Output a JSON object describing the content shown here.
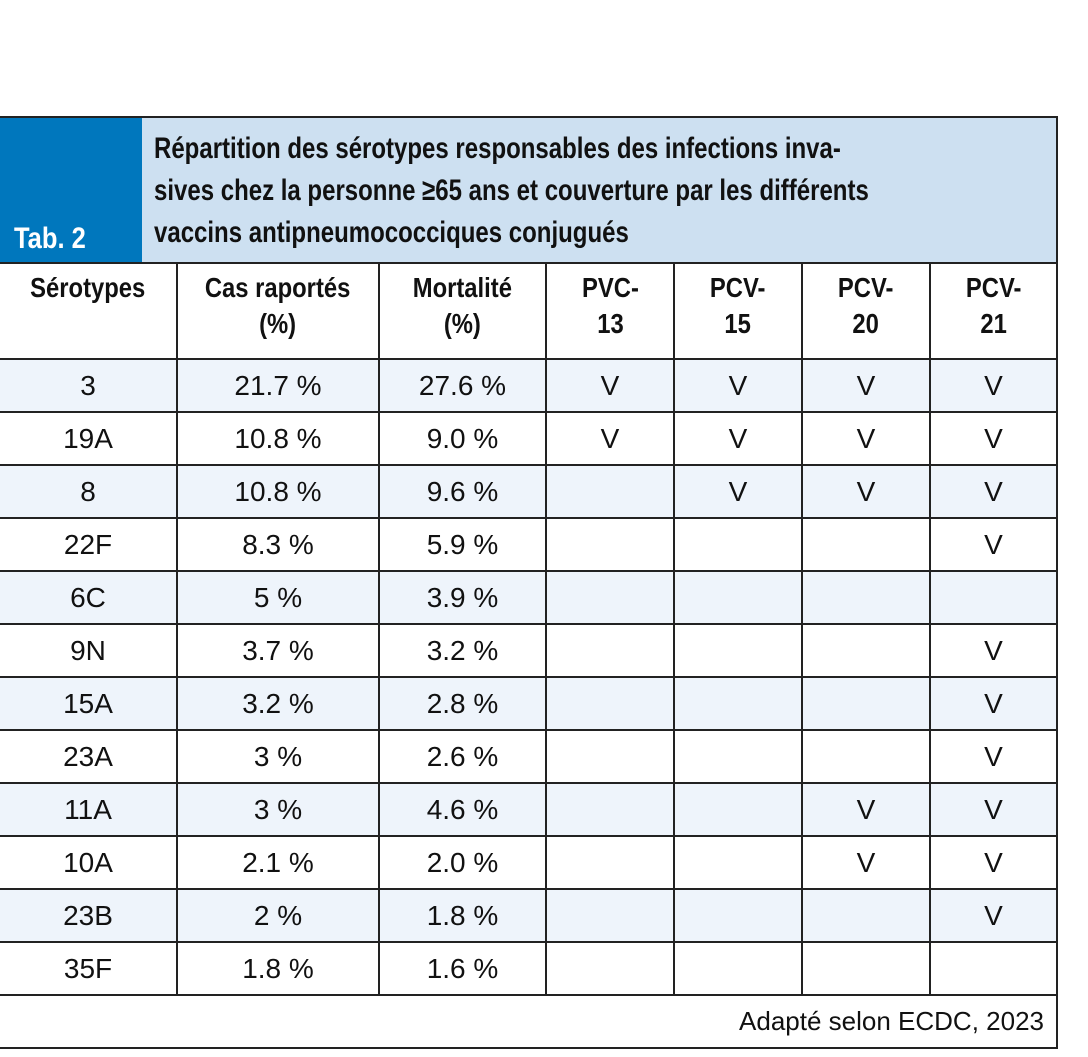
{
  "tab_label": "Tab. 2",
  "title_lines": [
    "Répartition des sérotypes responsables des infections inva-",
    "sives chez la personne ≥65 ans et couverture par les différents",
    "vaccins antipneumococciques conjugués"
  ],
  "columns": [
    [
      "Sérotypes",
      ""
    ],
    [
      "Cas raportés",
      "(%)"
    ],
    [
      "Mortalité",
      "(%)"
    ],
    [
      "PVC-",
      "13"
    ],
    [
      "PCV-",
      "15"
    ],
    [
      "PCV-",
      "20"
    ],
    [
      "PCV-",
      "21"
    ]
  ],
  "rows": [
    [
      "3",
      "21.7 %",
      "27.6 %",
      "V",
      "V",
      "V",
      "V"
    ],
    [
      "19A",
      "10.8 %",
      "9.0 %",
      "V",
      "V",
      "V",
      "V"
    ],
    [
      "8",
      "10.8 %",
      "9.6 %",
      "",
      "V",
      "V",
      "V"
    ],
    [
      "22F",
      "8.3 %",
      "5.9 %",
      "",
      "",
      "",
      "V"
    ],
    [
      "6C",
      "5 %",
      "3.9 %",
      "",
      "",
      "",
      ""
    ],
    [
      "9N",
      "3.7 %",
      "3.2 %",
      "",
      "",
      "",
      "V"
    ],
    [
      "15A",
      "3.2 %",
      "2.8 %",
      "",
      "",
      "",
      "V"
    ],
    [
      "23A",
      "3 %",
      "2.6 %",
      "",
      "",
      "",
      "V"
    ],
    [
      "11A",
      "3 %",
      "4.6 %",
      "",
      "",
      "V",
      "V"
    ],
    [
      "10A",
      "2.1 %",
      "2.0 %",
      "",
      "",
      "V",
      "V"
    ],
    [
      "23B",
      "2 %",
      "1.8 %",
      "",
      "",
      "",
      "V"
    ],
    [
      "35F",
      "1.8 %",
      "1.6 %",
      "",
      "",
      "",
      ""
    ]
  ],
  "source": "Adapté selon ECDC, 2023",
  "colors": {
    "tab_blue": "#0077bd",
    "title_bg": "#cde0f1",
    "row_alt": "#eef4fb"
  }
}
